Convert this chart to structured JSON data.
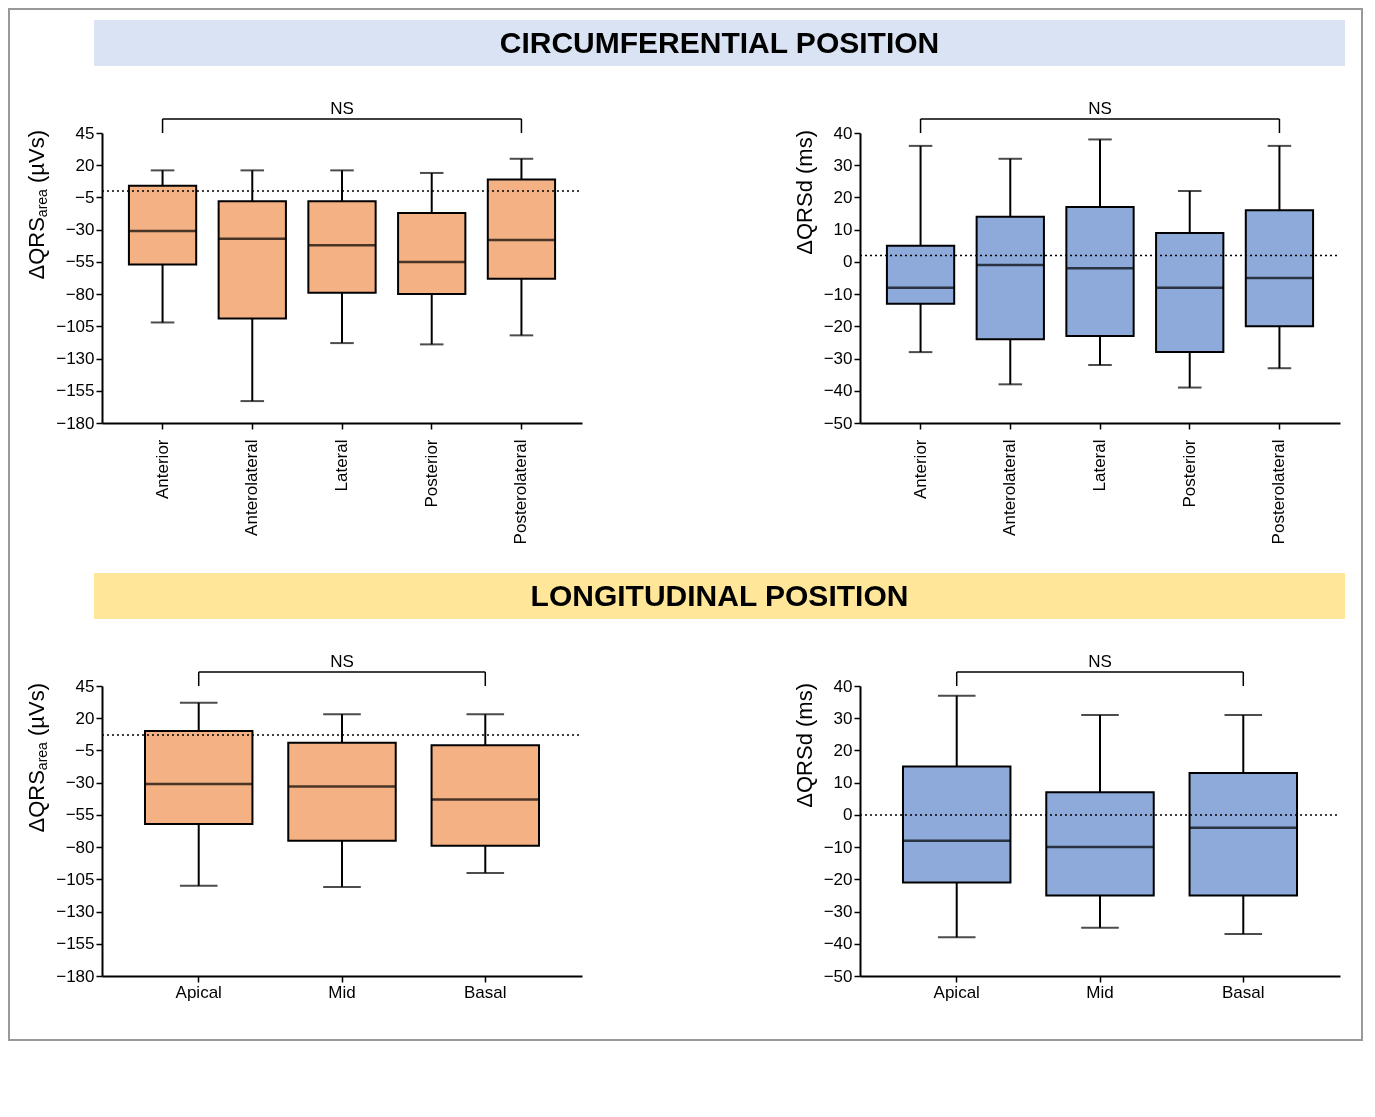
{
  "chart_data": [
    {
      "type": "box",
      "title": "CIRCUMFERENTIAL POSITION",
      "ylabel": "ΔQRS$_{area}$ (µVs)",
      "categories": [
        "Anterior",
        "Anterolateral",
        "Lateral",
        "Posterior",
        "Posterolateral"
      ],
      "series": [
        {
          "color": "#f4b183",
          "boxes": [
            {
              "low": -102,
              "q1": -57,
              "median": -31,
              "q3": 4,
              "high": 16
            },
            {
              "low": -163,
              "q1": -99,
              "median": -37,
              "q3": -8,
              "high": 16
            },
            {
              "low": -118,
              "q1": -79,
              "median": -42,
              "q3": -8,
              "high": 16
            },
            {
              "low": -119,
              "q1": -80,
              "median": -55,
              "q3": -17,
              "high": 14
            },
            {
              "low": -112,
              "q1": -68,
              "median": -38,
              "q3": 9,
              "high": 25
            }
          ]
        }
      ],
      "ylim": [
        -180,
        45
      ],
      "yticks": [
        -180,
        -155,
        -130,
        -105,
        -80,
        -55,
        -30,
        -5,
        20,
        45
      ],
      "ref_lines": [
        {
          "axis": "y",
          "value": 0,
          "line_style": "dotted"
        }
      ],
      "annotations": [
        "NS"
      ]
    },
    {
      "type": "box",
      "ylabel": "ΔQRSd (ms)",
      "categories": [
        "Anterior",
        "Anterolateral",
        "Lateral",
        "Posterior",
        "Posterolateral"
      ],
      "series": [
        {
          "color": "#8eaadb",
          "boxes": [
            {
              "low": -28,
              "q1": -13,
              "median": -8,
              "q3": 5,
              "high": 36
            },
            {
              "low": -38,
              "q1": -24,
              "median": -1,
              "q3": 14,
              "high": 32
            },
            {
              "low": -32,
              "q1": -23,
              "median": -2,
              "q3": 17,
              "high": 38
            },
            {
              "low": -39,
              "q1": -28,
              "median": -8,
              "q3": 9,
              "high": 22
            },
            {
              "low": -33,
              "q1": -20,
              "median": -5,
              "q3": 16,
              "high": 36
            }
          ]
        }
      ],
      "ylim": [
        -50,
        40
      ],
      "yticks": [
        -50,
        -40,
        -30,
        -20,
        -10,
        0,
        10,
        20,
        30,
        40
      ],
      "ref_lines": [
        {
          "axis": "y",
          "value": 2,
          "line_style": "dotted"
        }
      ],
      "annotations": [
        "NS"
      ]
    },
    {
      "type": "box",
      "title": "LONGITUDINAL POSITION",
      "ylabel": "ΔQRS$_{area}$ (µVs)",
      "categories": [
        "Apical",
        "Mid",
        "Basal"
      ],
      "series": [
        {
          "color": "#f4b183",
          "boxes": [
            {
              "low": -110,
              "q1": -62,
              "median": -31,
              "q3": 10,
              "high": 32
            },
            {
              "low": -111,
              "q1": -75,
              "median": -33,
              "q3": 1,
              "high": 23
            },
            {
              "low": -100,
              "q1": -79,
              "median": -43,
              "q3": -1,
              "high": 23
            }
          ]
        }
      ],
      "ylim": [
        -180,
        45
      ],
      "yticks": [
        -180,
        -155,
        -130,
        -105,
        -80,
        -55,
        -30,
        -5,
        20,
        45
      ],
      "ref_lines": [
        {
          "axis": "y",
          "value": 7,
          "line_style": "dotted"
        }
      ],
      "annotations": [
        "NS"
      ]
    },
    {
      "type": "box",
      "ylabel": "ΔQRSd (ms)",
      "categories": [
        "Apical",
        "Mid",
        "Basal"
      ],
      "series": [
        {
          "color": "#8eaadb",
          "boxes": [
            {
              "low": -38,
              "q1": -21,
              "median": -8,
              "q3": 15,
              "high": 37
            },
            {
              "low": -35,
              "q1": -25,
              "median": -10,
              "q3": 7,
              "high": 31
            },
            {
              "low": -37,
              "q1": -25,
              "median": -4,
              "q3": 13,
              "high": 31
            }
          ]
        }
      ],
      "ylim": [
        -50,
        40
      ],
      "yticks": [
        -50,
        -40,
        -30,
        -20,
        -10,
        0,
        10,
        20,
        30,
        40
      ],
      "ref_lines": [
        {
          "axis": "y",
          "value": 0,
          "line_style": "dotted"
        }
      ],
      "annotations": [
        "NS"
      ]
    }
  ]
}
